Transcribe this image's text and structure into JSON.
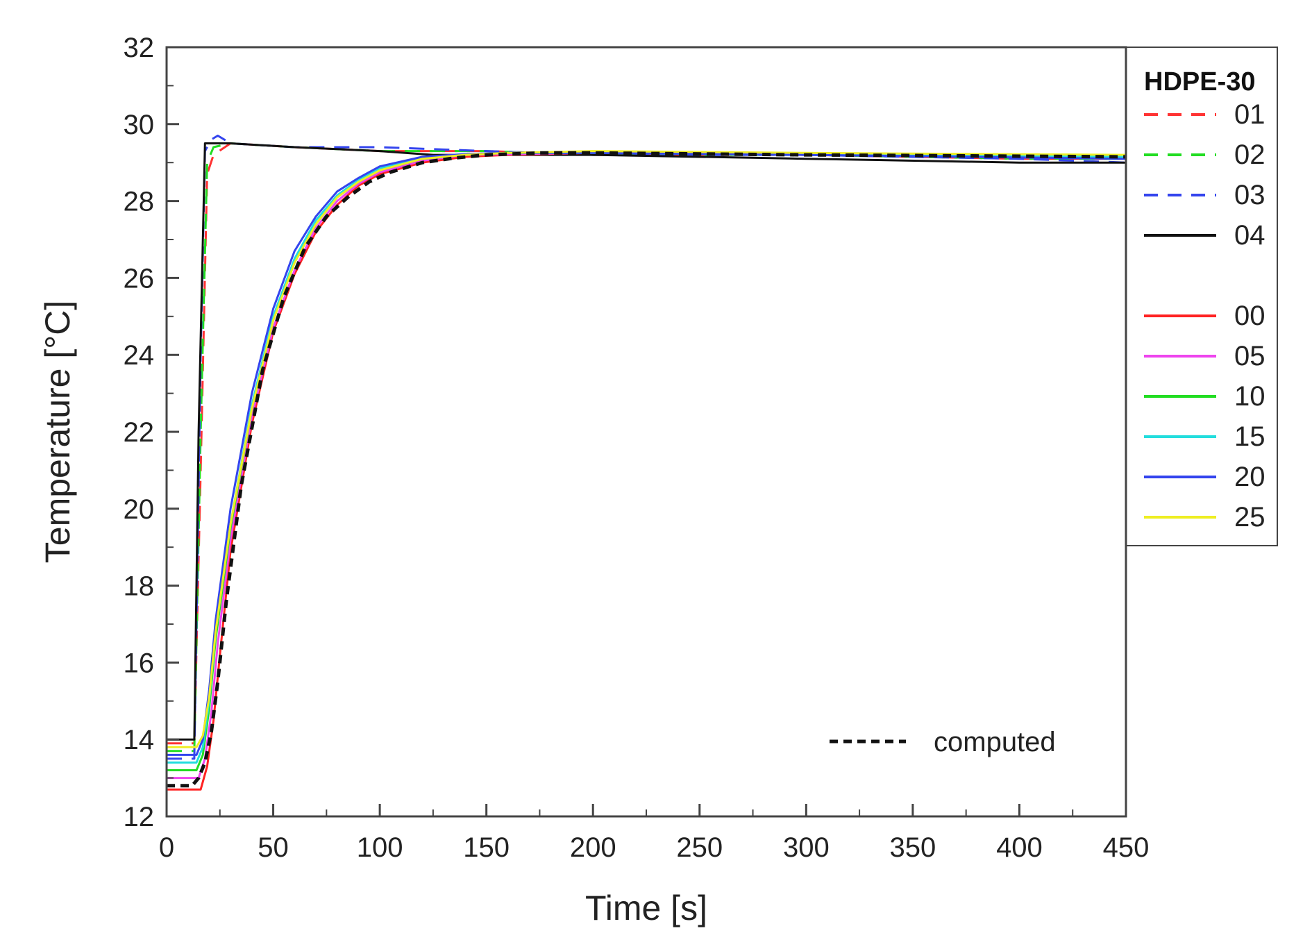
{
  "chart_data": {
    "type": "line",
    "xlabel": "Time [s]",
    "ylabel": "Temperature  [°C]",
    "xlim": [
      0,
      450
    ],
    "ylim": [
      12,
      32
    ],
    "xticks": [
      0,
      50,
      100,
      150,
      200,
      250,
      300,
      350,
      400,
      450
    ],
    "yticks": [
      12,
      14,
      16,
      18,
      20,
      22,
      24,
      26,
      28,
      30,
      32
    ],
    "grid": false,
    "legend": {
      "title": "HDPE-30",
      "placement": "right-outside-top",
      "entries": [
        {
          "label": "01",
          "color": "#ff3333",
          "style": "dashed"
        },
        {
          "label": "02",
          "color": "#22dd22",
          "style": "dashed"
        },
        {
          "label": "03",
          "color": "#3344ee",
          "style": "dashed"
        },
        {
          "label": "04",
          "color": "#111111",
          "style": "solid"
        },
        {
          "label": "00",
          "color": "#ff2222",
          "style": "solid"
        },
        {
          "label": "05",
          "color": "#ee44ee",
          "style": "solid"
        },
        {
          "label": "10",
          "color": "#22dd22",
          "style": "solid"
        },
        {
          "label": "15",
          "color": "#22dddd",
          "style": "solid"
        },
        {
          "label": "20",
          "color": "#3344ee",
          "style": "solid"
        },
        {
          "label": "25",
          "color": "#eeee22",
          "style": "solid"
        }
      ]
    },
    "annotation": {
      "label": "computed",
      "color": "#111111",
      "style": "dotted"
    },
    "series": [
      {
        "name": "01",
        "color": "#ff3333",
        "style": "dashed",
        "x": [
          0,
          13,
          16,
          19,
          22,
          30,
          60,
          100,
          150,
          200,
          300,
          400,
          450
        ],
        "y": [
          13.9,
          13.9,
          21,
          28.7,
          29.2,
          29.5,
          29.4,
          29.3,
          29.3,
          29.2,
          29.2,
          29.1,
          29.1
        ]
      },
      {
        "name": "02",
        "color": "#22dd22",
        "style": "dashed",
        "x": [
          0,
          13,
          16,
          19,
          22,
          30,
          60,
          100,
          150,
          200,
          300,
          400,
          450
        ],
        "y": [
          13.7,
          13.7,
          22,
          29.0,
          29.4,
          29.5,
          29.4,
          29.3,
          29.3,
          29.2,
          29.2,
          29.1,
          29.1
        ]
      },
      {
        "name": "03",
        "color": "#3344ee",
        "style": "dashed",
        "x": [
          0,
          13,
          16,
          18,
          21,
          24,
          30,
          60,
          100,
          150,
          200,
          300,
          400,
          450
        ],
        "y": [
          13.5,
          13.5,
          24,
          29.3,
          29.6,
          29.7,
          29.5,
          29.4,
          29.4,
          29.3,
          29.2,
          29.2,
          29.1,
          29.0
        ]
      },
      {
        "name": "04",
        "color": "#111111",
        "style": "solid",
        "x": [
          0,
          13,
          15,
          18,
          20,
          30,
          60,
          100,
          125,
          150,
          200,
          300,
          400,
          450
        ],
        "y": [
          14.0,
          14.0,
          22,
          29.5,
          29.5,
          29.5,
          29.4,
          29.3,
          29.2,
          29.2,
          29.2,
          29.1,
          29.0,
          29.0
        ]
      },
      {
        "name": "00",
        "color": "#ff2222",
        "style": "solid",
        "x": [
          0,
          16,
          19,
          22,
          25,
          30,
          40,
          50,
          60,
          70,
          80,
          90,
          100,
          120,
          140,
          160,
          200,
          300,
          450
        ],
        "y": [
          12.7,
          12.7,
          13.3,
          14.5,
          16.2,
          18.9,
          22.2,
          24.6,
          26.1,
          27.2,
          27.9,
          28.4,
          28.7,
          29.0,
          29.15,
          29.2,
          29.25,
          29.2,
          29.15
        ]
      },
      {
        "name": "05",
        "color": "#ee44ee",
        "style": "solid",
        "x": [
          0,
          15,
          18,
          21,
          24,
          30,
          40,
          50,
          60,
          70,
          80,
          90,
          100,
          120,
          140,
          160,
          200,
          300,
          450
        ],
        "y": [
          13.0,
          13.0,
          13.5,
          14.7,
          16.5,
          19.2,
          22.4,
          24.7,
          26.2,
          27.3,
          28.0,
          28.45,
          28.75,
          29.05,
          29.2,
          29.22,
          29.25,
          29.2,
          29.15
        ]
      },
      {
        "name": "10",
        "color": "#22dd22",
        "style": "solid",
        "x": [
          0,
          14,
          17,
          20,
          23,
          30,
          40,
          50,
          60,
          70,
          80,
          90,
          100,
          120,
          140,
          160,
          200,
          300,
          450
        ],
        "y": [
          13.2,
          13.2,
          13.6,
          14.8,
          16.6,
          19.5,
          22.6,
          24.9,
          26.4,
          27.4,
          28.1,
          28.5,
          28.8,
          29.1,
          29.2,
          29.25,
          29.25,
          29.2,
          29.15
        ]
      },
      {
        "name": "15",
        "color": "#22dddd",
        "style": "solid",
        "x": [
          0,
          14,
          17,
          20,
          23,
          30,
          40,
          50,
          60,
          70,
          80,
          90,
          100,
          120,
          140,
          160,
          200,
          300,
          450
        ],
        "y": [
          13.4,
          13.4,
          13.8,
          15.0,
          16.8,
          19.6,
          22.7,
          25.0,
          26.5,
          27.5,
          28.15,
          28.55,
          28.85,
          29.1,
          29.2,
          29.25,
          29.25,
          29.2,
          29.15
        ]
      },
      {
        "name": "20",
        "color": "#3344ee",
        "style": "solid",
        "x": [
          0,
          14,
          17,
          20,
          23,
          30,
          40,
          50,
          60,
          70,
          80,
          90,
          100,
          120,
          140,
          160,
          200,
          300,
          450
        ],
        "y": [
          13.6,
          13.6,
          14.0,
          15.3,
          17.1,
          20.0,
          23.0,
          25.2,
          26.7,
          27.6,
          28.25,
          28.6,
          28.9,
          29.15,
          29.22,
          29.25,
          29.25,
          29.2,
          29.1
        ]
      },
      {
        "name": "25",
        "color": "#eeee22",
        "style": "solid",
        "x": [
          0,
          14,
          17,
          20,
          23,
          30,
          40,
          50,
          60,
          70,
          80,
          90,
          100,
          120,
          140,
          160,
          200,
          300,
          450
        ],
        "y": [
          13.8,
          13.8,
          14.1,
          15.1,
          16.8,
          19.6,
          22.6,
          24.9,
          26.4,
          27.4,
          28.1,
          28.5,
          28.8,
          29.1,
          29.2,
          29.25,
          29.3,
          29.25,
          29.2
        ]
      },
      {
        "name": "computed",
        "color": "#111111",
        "style": "dotted",
        "x": [
          0,
          12,
          15,
          18,
          21,
          24,
          28,
          35,
          45,
          55,
          65,
          75,
          85,
          95,
          105,
          120,
          135,
          150,
          175,
          200,
          300,
          450
        ],
        "y": [
          12.8,
          12.8,
          13.0,
          13.4,
          14.2,
          15.5,
          17.6,
          20.6,
          23.6,
          25.5,
          26.8,
          27.6,
          28.1,
          28.5,
          28.75,
          29.0,
          29.12,
          29.2,
          29.25,
          29.25,
          29.2,
          29.15
        ]
      }
    ]
  }
}
